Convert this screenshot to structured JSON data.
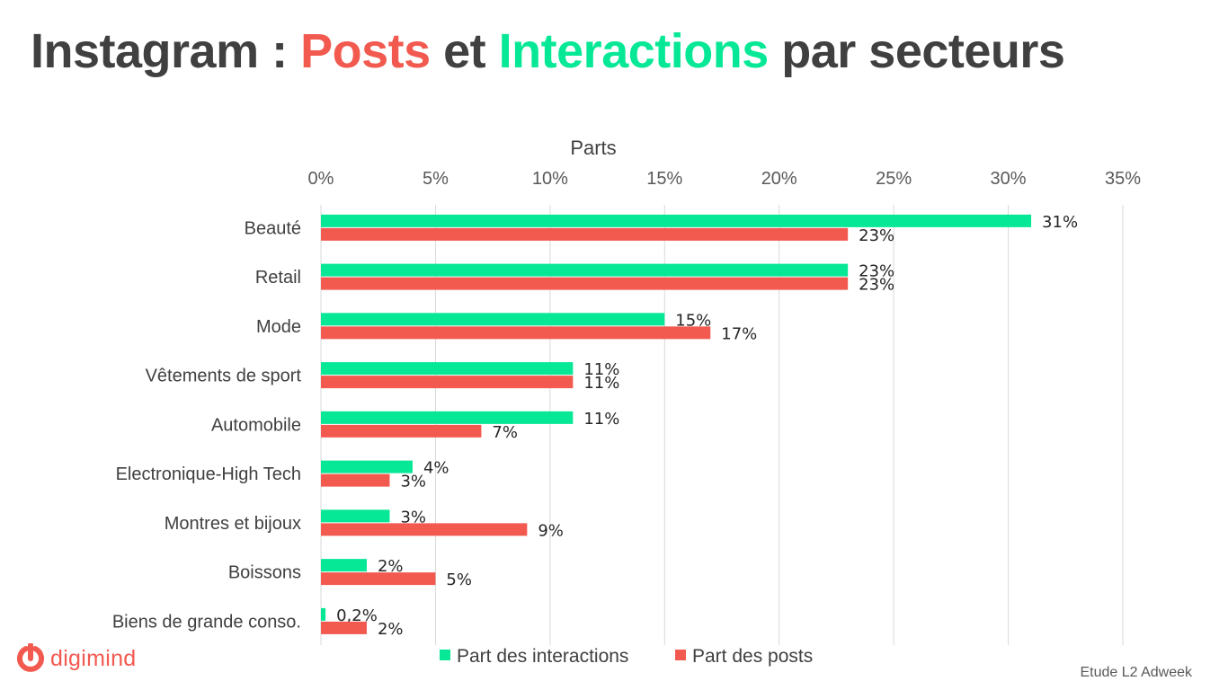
{
  "header": {
    "title_part1": "Instagram : ",
    "title_posts": "Posts",
    "title_mid": " et ",
    "title_interactions": "Interactions",
    "title_end": " par secteurs"
  },
  "colors": {
    "posts": "#f25a50",
    "interactions": "#06e896",
    "title_text": "#404040"
  },
  "chart_data": {
    "type": "bar",
    "orientation": "horizontal",
    "xlabel": "Parts",
    "xlim": [
      0,
      35
    ],
    "xticks": [
      0,
      5,
      10,
      15,
      20,
      25,
      30,
      35
    ],
    "xtick_labels": [
      "0%",
      "5%",
      "10%",
      "15%",
      "20%",
      "25%",
      "30%",
      "35%"
    ],
    "grid": true,
    "legend_position": "bottom",
    "categories": [
      "Beauté",
      "Retail",
      "Mode",
      "Vêtements de sport",
      "Automobile",
      "Electronique-High Tech",
      "Montres et bijoux",
      "Boissons",
      "Biens de grande conso."
    ],
    "series": [
      {
        "name": "Part des interactions",
        "color": "#06e896",
        "values": [
          31,
          23,
          15,
          11,
          11,
          4,
          3,
          2,
          0.2
        ],
        "labels": [
          "31%",
          "23%",
          "15%",
          "11%",
          "11%",
          "4%",
          "3%",
          "2%",
          "0,2%"
        ]
      },
      {
        "name": "Part des posts",
        "color": "#f25a50",
        "values": [
          23,
          23,
          17,
          11,
          7,
          3,
          9,
          5,
          2
        ],
        "labels": [
          "23%",
          "23%",
          "17%",
          "11%",
          "7%",
          "3%",
          "9%",
          "5%",
          "2%"
        ]
      }
    ]
  },
  "footer": {
    "logo_text": "digimind",
    "logo_icon": "digimind-logo-icon",
    "source": "Etude L2 Adweek"
  }
}
